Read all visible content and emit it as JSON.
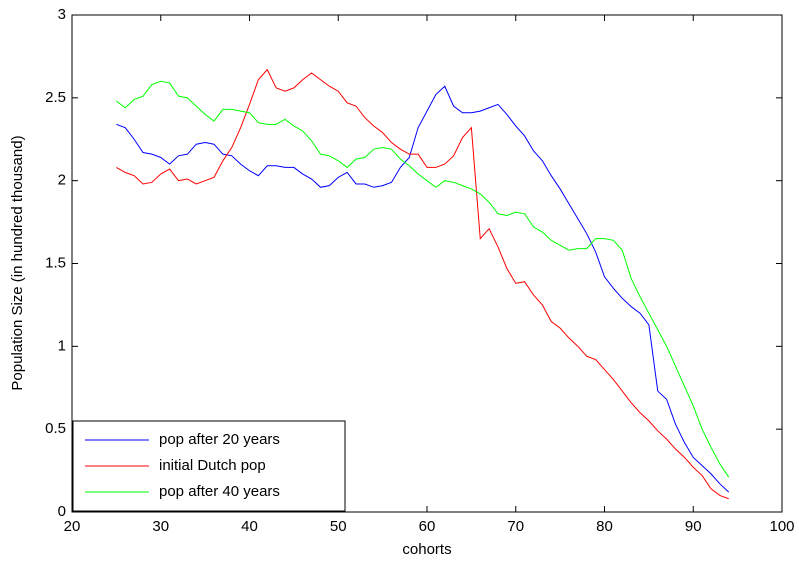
{
  "chart_data": {
    "type": "line",
    "xlabel": "cohorts",
    "ylabel": "Population Size (in hundred thousand)",
    "x": [
      25,
      26,
      27,
      28,
      29,
      30,
      31,
      32,
      33,
      34,
      35,
      36,
      37,
      38,
      39,
      40,
      41,
      42,
      43,
      44,
      45,
      46,
      47,
      48,
      49,
      50,
      51,
      52,
      53,
      54,
      55,
      56,
      57,
      58,
      59,
      60,
      61,
      62,
      63,
      64,
      65,
      66,
      67,
      68,
      69,
      70,
      71,
      72,
      73,
      74,
      75,
      76,
      77,
      78,
      79,
      80,
      81,
      82,
      83,
      84,
      85,
      86,
      87,
      88,
      89,
      90,
      91,
      92,
      93,
      94
    ],
    "series": [
      {
        "name": "pop after 20 years",
        "color": "#0000ff",
        "values": [
          2.34,
          2.32,
          2.25,
          2.17,
          2.16,
          2.14,
          2.1,
          2.15,
          2.16,
          2.22,
          2.23,
          2.22,
          2.16,
          2.15,
          2.1,
          2.06,
          2.03,
          2.09,
          2.09,
          2.08,
          2.08,
          2.04,
          2.01,
          1.96,
          1.97,
          2.02,
          2.05,
          1.98,
          1.98,
          1.96,
          1.97,
          1.99,
          2.08,
          2.14,
          2.32,
          2.42,
          2.52,
          2.57,
          2.45,
          2.41,
          2.41,
          2.42,
          2.44,
          2.46,
          2.4,
          2.33,
          2.27,
          2.18,
          2.12,
          2.03,
          1.95,
          1.86,
          1.77,
          1.68,
          1.57,
          1.42,
          1.35,
          1.29,
          1.24,
          1.2,
          1.13,
          0.73,
          0.68,
          0.53,
          0.42,
          0.33,
          0.28,
          0.23,
          0.17,
          0.12
        ]
      },
      {
        "name": "initial Dutch pop",
        "color": "#ff0000",
        "values": [
          2.08,
          2.05,
          2.03,
          1.98,
          1.99,
          2.04,
          2.07,
          2.0,
          2.01,
          1.98,
          2.0,
          2.02,
          2.12,
          2.2,
          2.32,
          2.46,
          2.61,
          2.67,
          2.56,
          2.54,
          2.56,
          2.61,
          2.65,
          2.61,
          2.57,
          2.54,
          2.47,
          2.45,
          2.38,
          2.33,
          2.29,
          2.23,
          2.19,
          2.16,
          2.16,
          2.08,
          2.08,
          2.1,
          2.15,
          2.26,
          2.32,
          1.65,
          1.71,
          1.6,
          1.47,
          1.38,
          1.39,
          1.31,
          1.25,
          1.15,
          1.11,
          1.05,
          1.0,
          0.94,
          0.92,
          0.86,
          0.8,
          0.73,
          0.66,
          0.6,
          0.55,
          0.49,
          0.44,
          0.38,
          0.33,
          0.27,
          0.22,
          0.14,
          0.1,
          0.08
        ]
      },
      {
        "name": "pop after 40 years",
        "color": "#00ff00",
        "values": [
          2.48,
          2.44,
          2.49,
          2.51,
          2.58,
          2.6,
          2.59,
          2.51,
          2.5,
          2.45,
          2.4,
          2.36,
          2.43,
          2.43,
          2.42,
          2.41,
          2.35,
          2.34,
          2.34,
          2.37,
          2.33,
          2.3,
          2.24,
          2.16,
          2.15,
          2.12,
          2.08,
          2.13,
          2.14,
          2.19,
          2.2,
          2.19,
          2.13,
          2.09,
          2.04,
          2.0,
          1.96,
          2.0,
          1.99,
          1.97,
          1.95,
          1.92,
          1.87,
          1.8,
          1.79,
          1.81,
          1.8,
          1.72,
          1.69,
          1.64,
          1.61,
          1.58,
          1.59,
          1.59,
          1.65,
          1.65,
          1.64,
          1.58,
          1.41,
          1.3,
          1.2,
          1.1,
          1.0,
          0.88,
          0.76,
          0.64,
          0.5,
          0.39,
          0.29,
          0.21
        ]
      }
    ],
    "xlim": [
      20,
      100
    ],
    "xticks": [
      20,
      30,
      40,
      50,
      60,
      70,
      80,
      90,
      100
    ],
    "ylim": [
      0,
      3
    ],
    "yticks": [
      0,
      0.5,
      1,
      1.5,
      2,
      2.5,
      3
    ],
    "legend": "lower left",
    "grid": false
  }
}
